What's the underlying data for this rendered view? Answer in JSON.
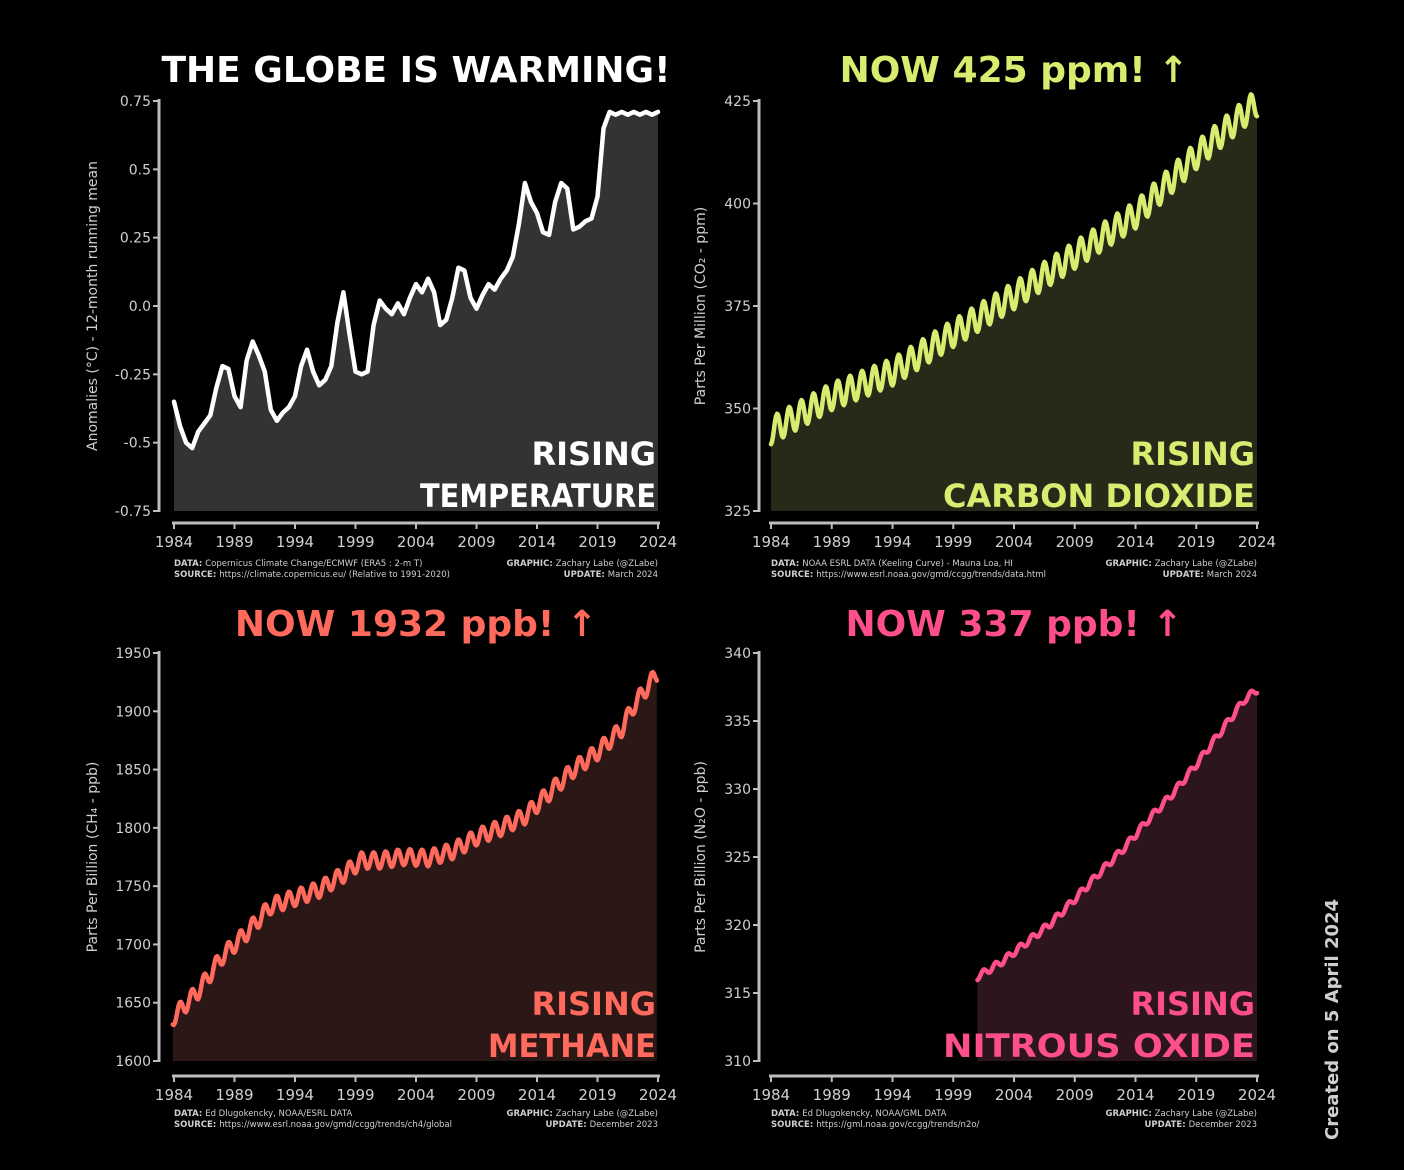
{
  "credit": "Created on 5 April 2024",
  "chart_data": [
    {
      "type": "area",
      "title": "THE GLOBE IS WARMING!",
      "title_color": "#ffffff",
      "ylabel": "Anomalies (°C) - 12-month running mean",
      "ylim": [
        -0.75,
        0.75
      ],
      "yticks": [
        -0.75,
        -0.5,
        -0.25,
        0.0,
        0.25,
        0.5,
        0.75
      ],
      "ytick_labels": [
        "-0.75",
        "-0.5",
        "-0.25",
        "0.0",
        "0.25",
        "0.5",
        "0.75"
      ],
      "xlim": [
        1984,
        2024
      ],
      "xticks": [
        1984,
        1989,
        1994,
        1999,
        2004,
        2009,
        2014,
        2019,
        2024
      ],
      "line_color": "#ffffff",
      "fill_color": "#333333",
      "annotation": [
        "RISING",
        "TEMPERATURE"
      ],
      "footer_left": [
        [
          "DATA:",
          "Copernicus Climate Change/ECMWF (ERA5 : 2-m T)"
        ],
        [
          "SOURCE:",
          "https://climate.copernicus.eu/ (Relative to 1991-2020)"
        ]
      ],
      "footer_right": [
        [
          "GRAPHIC:",
          "Zachary Labe (@ZLabe)"
        ],
        [
          "UPDATE:",
          "March 2024"
        ]
      ],
      "series": [
        {
          "x": [
            1984.0,
            1984.5,
            1985.0,
            1985.5,
            1986.0,
            1986.5,
            1987.0,
            1987.5,
            1988.0,
            1988.5,
            1989.0,
            1989.5,
            1990.0,
            1990.5,
            1991.0,
            1991.5,
            1992.0,
            1992.5,
            1993.0,
            1993.5,
            1994.0,
            1994.5,
            1995.0,
            1995.5,
            1996.0,
            1996.5,
            1997.0,
            1997.5,
            1998.0,
            1998.5,
            1999.0,
            1999.5,
            2000.0,
            2000.5,
            2001.0,
            2001.5,
            2002.0,
            2002.5,
            2003.0,
            2003.5,
            2004.0,
            2004.5,
            2005.0,
            2005.5,
            2006.0,
            2006.5,
            2007.0,
            2007.5,
            2008.0,
            2008.5,
            2009.0,
            2009.5,
            2010.0,
            2010.5,
            2011.0,
            2011.5,
            2012.0,
            2012.5,
            2013.0,
            2013.5,
            2014.0,
            2014.5,
            2015.0,
            2015.5,
            2016.0,
            2016.5,
            2017.0,
            2017.5,
            2018.0,
            2018.5,
            2019.0,
            2019.5,
            2020.0,
            2020.5,
            2021.0,
            2021.5,
            2022.0,
            2022.5,
            2023.0,
            2023.5,
            2024.0
          ],
          "y": [
            -0.35,
            -0.44,
            -0.5,
            -0.52,
            -0.46,
            -0.43,
            -0.4,
            -0.3,
            -0.22,
            -0.23,
            -0.33,
            -0.37,
            -0.2,
            -0.13,
            -0.18,
            -0.24,
            -0.38,
            -0.42,
            -0.39,
            -0.37,
            -0.33,
            -0.22,
            -0.16,
            -0.24,
            -0.29,
            -0.27,
            -0.22,
            -0.06,
            0.05,
            -0.1,
            -0.24,
            -0.25,
            -0.24,
            -0.07,
            0.02,
            -0.01,
            -0.03,
            0.01,
            -0.03,
            0.03,
            0.08,
            0.05,
            0.1,
            0.05,
            -0.07,
            -0.05,
            0.03,
            0.14,
            0.13,
            0.03,
            -0.01,
            0.04,
            0.08,
            0.06,
            0.1,
            0.13,
            0.18,
            0.3,
            0.45,
            0.38,
            0.34,
            0.27,
            0.26,
            0.38,
            0.45,
            0.43,
            0.28,
            0.29,
            0.31,
            0.32,
            0.4,
            0.65,
            0.71,
            0.7,
            0.71,
            0.7,
            0.71,
            0.7,
            0.71,
            0.7,
            0.71
          ]
        }
      ]
    },
    {
      "type": "area",
      "title": "NOW 425 ppm! ↑",
      "title_color": "#d9ec6f",
      "ylabel": "Parts Per Million (CO₂ - ppm)",
      "ylim": [
        325,
        425
      ],
      "yticks": [
        325,
        350,
        375,
        400,
        425
      ],
      "ytick_labels": [
        "325",
        "350",
        "375",
        "400",
        "425"
      ],
      "xlim": [
        1984,
        2024
      ],
      "xticks": [
        1984,
        1989,
        1994,
        1999,
        2004,
        2009,
        2014,
        2019,
        2024
      ],
      "line_color": "#d9ec6f",
      "fill_color": "#29291a",
      "annotation": [
        "RISING",
        "CARBON DIOXIDE"
      ],
      "footer_left": [
        [
          "DATA:",
          "NOAA ESRL DATA (Keeling Curve) - Mauna Loa, HI"
        ],
        [
          "SOURCE:",
          "https://www.esrl.noaa.gov/gmd/ccgg/trends/data.html"
        ]
      ],
      "footer_right": [
        [
          "GRAPHIC:",
          "Zachary Labe (@ZLabe)"
        ],
        [
          "UPDATE:",
          "March 2024"
        ]
      ],
      "series": [
        {
          "x": [
            1984,
            1989,
            1994,
            1999,
            2004,
            2009,
            2014,
            2019,
            2024
          ],
          "y": [
            344.6,
            352.9,
            358.9,
            368.3,
            377.5,
            387.4,
            397.2,
            411.7,
            424.6
          ],
          "seasonal_amplitude": 3.3
        }
      ]
    },
    {
      "type": "area",
      "title": "NOW 1932 ppb! ↑",
      "title_color": "#ff6a5c",
      "ylabel": "Parts Per Billion (CH₄ - ppb)",
      "ylim": [
        1600,
        1950
      ],
      "yticks": [
        1600,
        1650,
        1700,
        1750,
        1800,
        1850,
        1900,
        1950
      ],
      "ytick_labels": [
        "1600",
        "1650",
        "1700",
        "1750",
        "1800",
        "1850",
        "1900",
        "1950"
      ],
      "xlim": [
        1984,
        2024
      ],
      "xticks": [
        1984,
        1989,
        1994,
        1999,
        2004,
        2009,
        2014,
        2019,
        2024
      ],
      "line_color": "#ff6a5c",
      "fill_color": "#2c1717",
      "annotation": [
        "RISING",
        "METHANE"
      ],
      "footer_left": [
        [
          "DATA:",
          "Ed Dlugokencky, NOAA/ESRL DATA"
        ],
        [
          "SOURCE:",
          "https://www.esrl.noaa.gov/gmd/ccgg/trends/ch4/global"
        ]
      ],
      "footer_right": [
        [
          "GRAPHIC:",
          "Zachary Labe (@ZLabe)"
        ],
        [
          "UPDATE:",
          "December 2023"
        ]
      ],
      "series": [
        {
          "x": [
            1983.9,
            1986,
            1988,
            1990,
            1992,
            1994,
            1996,
            1998,
            1999.5,
            2001,
            2003,
            2005,
            2007,
            2009,
            2011,
            2013,
            2015,
            2017,
            2019,
            2021,
            2022,
            2023.9
          ],
          "y": [
            1637,
            1660,
            1690,
            1710,
            1733,
            1740,
            1747,
            1760,
            1772,
            1772,
            1775,
            1774,
            1780,
            1792,
            1800,
            1810,
            1830,
            1850,
            1865,
            1885,
            1905,
            1932
          ],
          "seasonal_amplitude": 7
        }
      ]
    },
    {
      "type": "area",
      "title": "NOW 337 ppb! ↑",
      "title_color": "#ff4f8a",
      "ylabel": "Parts Per Billion (N₂O - ppb)",
      "ylim": [
        310,
        340
      ],
      "yticks": [
        310,
        315,
        320,
        325,
        330,
        335,
        340
      ],
      "ytick_labels": [
        "310",
        "315",
        "320",
        "325",
        "330",
        "335",
        "340"
      ],
      "xlim": [
        1984,
        2024
      ],
      "xticks": [
        1984,
        1989,
        1994,
        1999,
        2004,
        2009,
        2014,
        2019,
        2024
      ],
      "line_color": "#ff4f8a",
      "fill_color": "#2c161c",
      "annotation": [
        "RISING",
        "NITROUS OXIDE"
      ],
      "footer_left": [
        [
          "DATA:",
          "Ed Dlugokencky, NOAA/GML DATA"
        ],
        [
          "SOURCE:",
          "https://gml.noaa.gov/ccgg/trends/n2o/"
        ]
      ],
      "footer_right": [
        [
          "GRAPHIC:",
          "Zachary Labe (@ZLabe)"
        ],
        [
          "UPDATE:",
          "December 2023"
        ]
      ],
      "series": [
        {
          "x": [
            2001,
            2003,
            2005,
            2007,
            2009,
            2011,
            2013,
            2015,
            2017,
            2019,
            2021,
            2023,
            2024
          ],
          "y": [
            316.2,
            317.3,
            318.7,
            320.1,
            321.9,
            323.8,
            325.6,
            327.7,
            329.6,
            331.8,
            334.2,
            336.6,
            337.3
          ],
          "seasonal_amplitude": 0.25
        }
      ]
    }
  ]
}
